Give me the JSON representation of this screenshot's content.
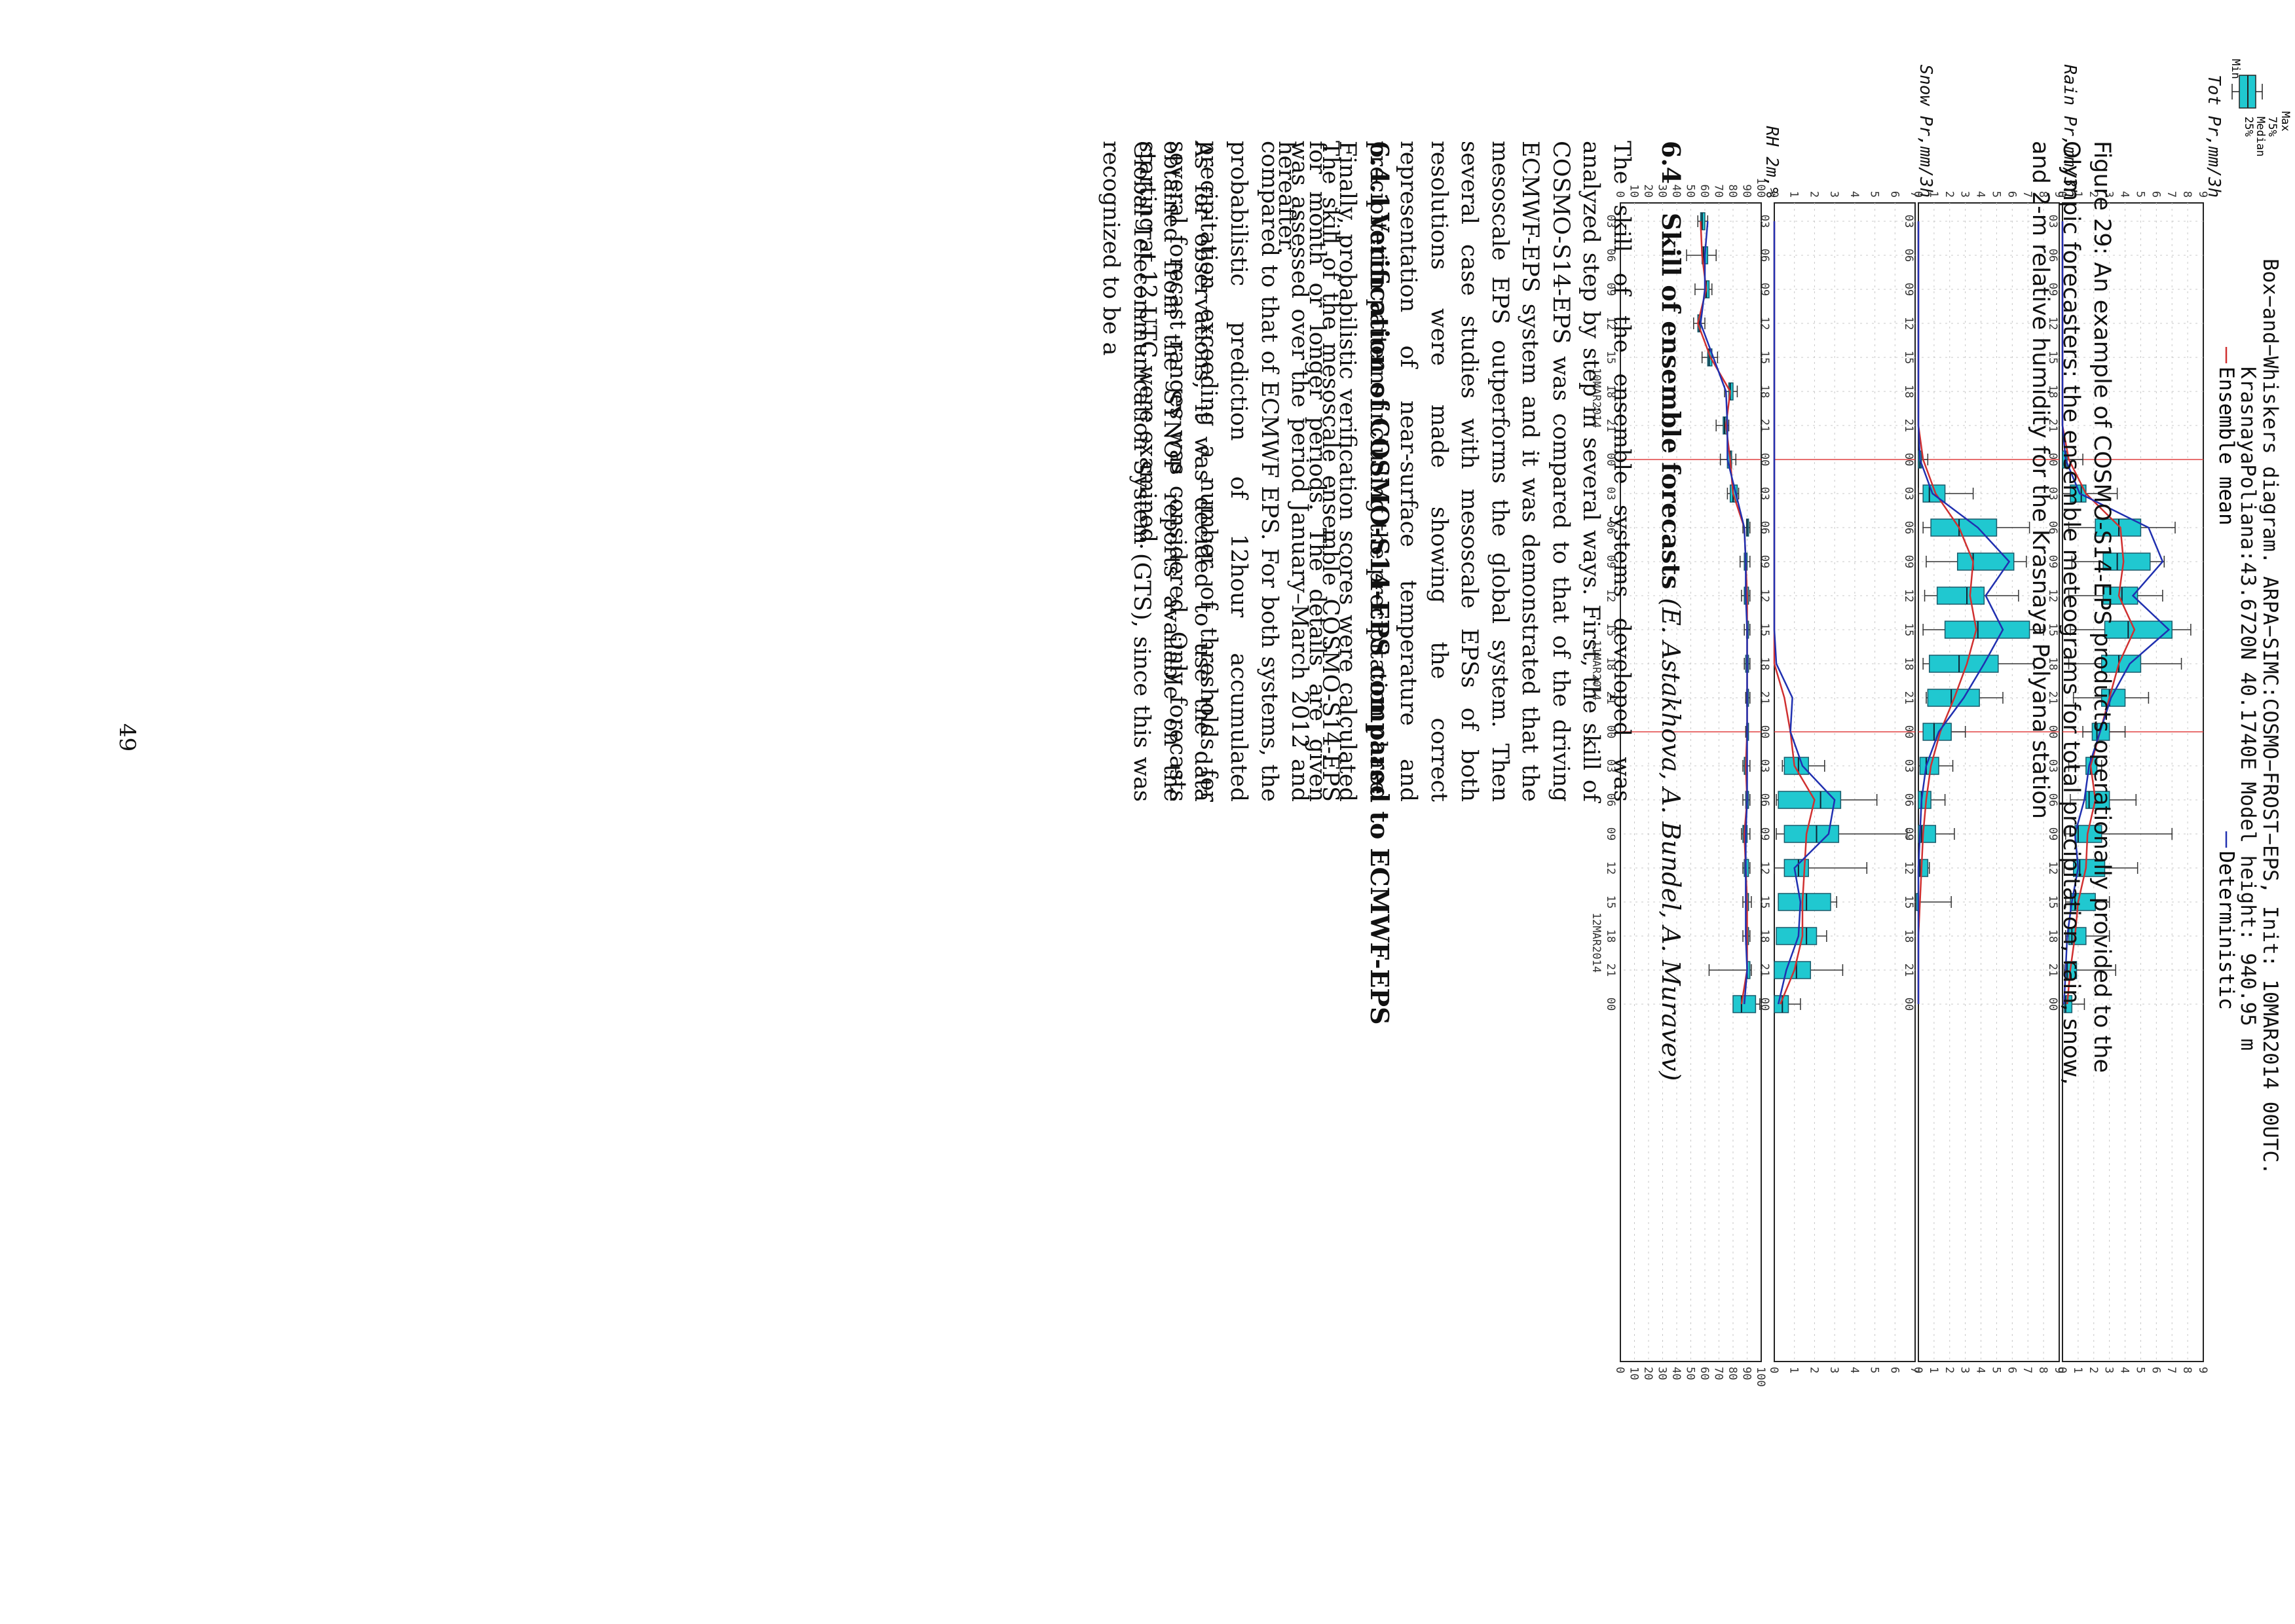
{
  "figure": {
    "title_line1": "Box−and−Whiskers diagram. ARPA−SIMC:COSMO−FROST−EPS, Init: 10MAR2014 00UTC.",
    "title_line2": "KrasnayaPoliana:43.6720N 40.1740E Model height: 940.95 m",
    "legend": {
      "max": "Max",
      "p75": "75%",
      "median": "Median",
      "p25": "25%",
      "min": "Min",
      "ensemble_mean": "Ensemble mean",
      "deterministic": "Deterministic"
    },
    "colors": {
      "box": "#20c8d0",
      "mean": "#d03030",
      "deterministic": "#2030b0",
      "grid": "#c8c8c8"
    },
    "x_tick_labels": [
      "03",
      "06",
      "09",
      "12",
      "15",
      "18",
      "21",
      "00",
      "03",
      "06",
      "09",
      "12",
      "15",
      "18",
      "21",
      "00",
      "03",
      "06",
      "09",
      "12",
      "15",
      "18",
      "21",
      "00"
    ],
    "date_labels": [
      "10MAR2014",
      "11MAR2014",
      "12MAR2014"
    ],
    "caption_label": "Figure 29:",
    "caption_text": "An example of COSMO-S14-EPS products operationally provided to the Olympic forecasters: the ensemble meteograms for total precipitation, rain, snow, and 2-m relative humidity for the Krasnaya Polyana station"
  },
  "chart_data": [
    {
      "type": "box",
      "title": "Tot Pr,mm/3h",
      "ylim": [
        0,
        9
      ],
      "y_ticks": [
        0,
        1,
        2,
        3,
        4,
        5,
        6,
        7,
        8,
        9
      ],
      "x": [
        "03",
        "06",
        "09",
        "12",
        "15",
        "18",
        "21",
        "00",
        "03",
        "06",
        "09",
        "12",
        "15",
        "18",
        "21",
        "00",
        "03",
        "06",
        "09",
        "12",
        "15",
        "18",
        "21",
        "00"
      ],
      "min": [
        0,
        0,
        0,
        0,
        0,
        0,
        0,
        0,
        0,
        0.4,
        0.6,
        0.4,
        0.5,
        0.4,
        0.7,
        1.3,
        0.4,
        0.5,
        0.2,
        0.1,
        0.2,
        0.2,
        0.1,
        0
      ],
      "q1": [
        0,
        0,
        0,
        0,
        0,
        0,
        0,
        0,
        0.5,
        2.1,
        2.6,
        2.6,
        2.7,
        2.5,
        2.5,
        1.9,
        1.5,
        1.5,
        0.8,
        0.7,
        0.5,
        0.4,
        0.2,
        0.1
      ],
      "median": [
        0,
        0,
        0,
        0,
        0,
        0,
        0,
        0.2,
        1.2,
        3.6,
        3.5,
        3.8,
        4.2,
        3.6,
        3.0,
        2.2,
        1.8,
        1.7,
        1.0,
        1.1,
        0.8,
        0.6,
        0.3,
        0.2
      ],
      "q3": [
        0,
        0,
        0,
        0,
        0,
        0,
        0,
        0.3,
        1.5,
        5.0,
        5.6,
        4.8,
        7.0,
        5.0,
        4.0,
        3.0,
        2.2,
        3.0,
        2.5,
        2.7,
        2.1,
        1.5,
        0.9,
        0.6
      ],
      "max": [
        0,
        0,
        0,
        0,
        0,
        0,
        0,
        1.3,
        3.5,
        7.2,
        6.5,
        6.4,
        8.2,
        7.6,
        5.5,
        4.0,
        2.5,
        4.7,
        7.0,
        4.8,
        3.0,
        3.0,
        3.4,
        1.4
      ],
      "ensemble_mean": [
        0,
        0,
        0,
        0,
        0,
        0,
        0,
        0.4,
        1.5,
        3.7,
        3.9,
        3.6,
        4.6,
        3.6,
        3.0,
        2.4,
        1.8,
        2.1,
        1.6,
        1.5,
        1.0,
        0.8,
        0.5,
        0.3
      ],
      "deterministic": [
        0,
        0,
        0,
        0,
        0,
        0,
        0,
        0.2,
        1.1,
        5.5,
        6.4,
        4.5,
        6.8,
        4.3,
        3.1,
        2.4,
        1.7,
        1.4,
        0.8,
        1.0,
        0.6,
        0.3,
        0.2,
        0.1
      ]
    },
    {
      "type": "box",
      "title": "Rain Pr,mm/3h",
      "ylim": [
        0,
        9
      ],
      "y_ticks": [
        0,
        1,
        2,
        3,
        4,
        5,
        6,
        7,
        8,
        9
      ],
      "x": [
        "03",
        "06",
        "09",
        "12",
        "15",
        "18",
        "21",
        "00",
        "03",
        "06",
        "09",
        "12",
        "15",
        "18",
        "21",
        "00",
        "03",
        "06",
        "09",
        "12",
        "15",
        "18",
        "21",
        "00"
      ],
      "min": [
        0,
        0,
        0,
        0,
        0,
        0,
        0,
        0,
        0,
        0.3,
        0.5,
        0.4,
        0.3,
        0.3,
        0.5,
        0.4,
        0,
        0,
        0,
        0,
        0,
        0,
        0,
        0
      ],
      "q1": [
        0,
        0,
        0,
        0,
        0,
        0,
        0,
        0,
        0.3,
        0.8,
        2.5,
        1.2,
        1.7,
        0.7,
        0.6,
        0.3,
        0.1,
        0,
        0,
        0,
        0,
        0,
        0,
        0
      ],
      "median": [
        0,
        0,
        0,
        0,
        0,
        0,
        0,
        0.1,
        0.7,
        2.6,
        3.5,
        3.1,
        3.8,
        2.6,
        2.1,
        1.0,
        0.5,
        0.2,
        0.2,
        0.1,
        0,
        0,
        0,
        0
      ],
      "q3": [
        0,
        0,
        0,
        0,
        0,
        0,
        0,
        0.2,
        1.7,
        5.0,
        6.1,
        4.2,
        7.1,
        5.1,
        3.9,
        2.1,
        1.3,
        0.8,
        1.1,
        0.6,
        0,
        0,
        0,
        0
      ],
      "max": [
        0,
        0,
        0,
        0,
        0,
        0,
        0,
        0.6,
        3.5,
        7.1,
        6.9,
        6.4,
        8.0,
        7.4,
        5.4,
        3.0,
        2.2,
        1.7,
        2.3,
        0.7,
        2.1,
        0,
        0,
        0
      ],
      "ensemble_mean": [
        0,
        0,
        0,
        0,
        0,
        0,
        0,
        0.3,
        1.1,
        2.6,
        3.5,
        3.3,
        3.7,
        3.1,
        2.3,
        1.4,
        0.8,
        0.5,
        0.3,
        0.2,
        0.1,
        0,
        0,
        0
      ],
      "deterministic": [
        0,
        0,
        0,
        0,
        0,
        0,
        0,
        0.1,
        0.9,
        3.8,
        5.8,
        4.3,
        5.4,
        4.2,
        2.9,
        1.3,
        0.5,
        0.2,
        0.1,
        0,
        0,
        0,
        0,
        0
      ]
    },
    {
      "type": "box",
      "title": "Snow Pr,mm/3h",
      "ylim": [
        0,
        7
      ],
      "y_ticks": [
        0,
        1,
        2,
        3,
        4,
        5,
        6,
        7
      ],
      "x": [
        "03",
        "06",
        "09",
        "12",
        "15",
        "18",
        "21",
        "00",
        "03",
        "06",
        "09",
        "12",
        "15",
        "18",
        "21",
        "00",
        "03",
        "06",
        "09",
        "12",
        "15",
        "18",
        "21",
        "00"
      ],
      "min": [
        0,
        0,
        0,
        0,
        0,
        0,
        0,
        0,
        0,
        0,
        0,
        0,
        0,
        0,
        0,
        0,
        0.4,
        0.1,
        0.1,
        0,
        0.2,
        0.3,
        0,
        0
      ],
      "q1": [
        0,
        0,
        0,
        0,
        0,
        0,
        0,
        0,
        0,
        0,
        0,
        0,
        0,
        0,
        0,
        0,
        0.5,
        0.2,
        0.5,
        0.5,
        0.2,
        0.1,
        0,
        0
      ],
      "median": [
        0,
        0,
        0,
        0,
        0,
        0,
        0,
        0,
        0,
        0,
        0,
        0,
        0,
        0,
        0,
        0,
        1.2,
        2.3,
        2.1,
        1.2,
        1.6,
        1.6,
        1.1,
        0.4
      ],
      "q3": [
        0,
        0,
        0,
        0,
        0,
        0,
        0,
        0,
        0,
        0,
        0,
        0,
        0,
        0,
        0,
        0,
        1.7,
        3.3,
        3.2,
        1.7,
        2.8,
        2.1,
        1.8,
        0.7
      ],
      "max": [
        0,
        0,
        0,
        0,
        0,
        0,
        0,
        0,
        0,
        0,
        0,
        0,
        0,
        0,
        0,
        0,
        2.5,
        5.1,
        6.6,
        4.6,
        3.1,
        2.6,
        3.4,
        1.3
      ],
      "ensemble_mean": [
        0,
        0,
        0,
        0,
        0,
        0,
        0,
        0,
        0,
        0,
        0,
        0,
        0,
        0,
        0.5,
        0.8,
        1.0,
        2.0,
        1.6,
        1.5,
        1.4,
        1.4,
        1.0,
        0.3
      ],
      "deterministic": [
        0,
        0,
        0,
        0,
        0,
        0,
        0,
        0,
        0,
        0,
        0,
        0,
        0,
        0.1,
        0.9,
        0.8,
        1.4,
        3.0,
        2.7,
        1.0,
        1.3,
        1.2,
        0.6,
        0.2
      ]
    },
    {
      "type": "box",
      "title": "RH 2m,%",
      "ylim": [
        0,
        100
      ],
      "y_ticks": [
        0,
        10,
        20,
        30,
        40,
        50,
        60,
        70,
        80,
        90,
        100
      ],
      "x": [
        "03",
        "06",
        "09",
        "12",
        "15",
        "18",
        "21",
        "00",
        "03",
        "06",
        "09",
        "12",
        "15",
        "18",
        "21",
        "00",
        "03",
        "06",
        "09",
        "12",
        "15",
        "18",
        "21",
        "00"
      ],
      "min": [
        55,
        47,
        53,
        52,
        58,
        74,
        68,
        71,
        76,
        87,
        85,
        86,
        88,
        88,
        89,
        89,
        87,
        87,
        86,
        87,
        87,
        87,
        63,
        84
      ],
      "q1": [
        57,
        58,
        60,
        55,
        62,
        77,
        73,
        76,
        78,
        90,
        88,
        88,
        90,
        89,
        90,
        90,
        88,
        89,
        87,
        88,
        89,
        89,
        90,
        80
      ],
      "median": [
        58,
        59,
        61,
        56,
        63,
        78,
        74,
        78,
        80,
        90,
        89,
        89,
        90,
        90,
        90,
        90,
        89,
        90,
        88,
        89,
        90,
        90,
        90,
        86
      ],
      "q3": [
        60,
        62,
        63,
        57,
        65,
        80,
        76,
        79,
        83,
        91,
        90,
        91,
        91,
        91,
        91,
        91,
        90,
        91,
        90,
        91,
        91,
        91,
        92,
        96
      ],
      "max": [
        62,
        68,
        65,
        60,
        69,
        83,
        77,
        82,
        84,
        92,
        92,
        92,
        92,
        92,
        92,
        91,
        92,
        92,
        92,
        92,
        93,
        92,
        93,
        99
      ],
      "ensemble_mean": [
        57,
        58,
        61,
        55,
        64,
        78,
        75,
        78,
        80,
        88,
        89,
        90,
        90,
        90,
        90,
        90,
        89,
        90,
        88,
        89,
        90,
        90,
        90,
        86
      ],
      "deterministic": [
        62,
        60,
        60,
        57,
        66,
        75,
        76,
        76,
        82,
        88,
        89,
        89,
        90,
        90,
        90,
        90,
        90,
        90,
        89,
        89,
        89,
        89,
        90,
        88
      ]
    }
  ],
  "sections": {
    "s64": {
      "number": "6.4",
      "title": "Skill of ensemble forecasts ",
      "authors": "(E. Astakhova, A. Bundel, A. Muravev)",
      "body": "The skill of the ensemble systems developed was analyzed step by step in several ways. First, the skill of COSMO-S14-EPS was compared to that of the driving ECMWF-EPS system and it was demonstrated that the mesoscale EPS outperforms the global system. Then several case studies with mesoscale EPSs of both resolutions were made showing the correct representation of near-surface temperature and precipitation patterns including the precipitation phase. Finally, probabilistic verification scores were calculated for month or longer periods. The details are given hereafter."
    },
    "s641": {
      "number": "6.4.1",
      "title": "Verification of COSMO-S14-EPS compared to ECMWF-EPS",
      "body1": "The skill of the mesoscale ensemble COSMO-S14-EPS was assessed over the period January–March 2012 and compared to that of ECMWF EPS. For both systems, the probabilistic prediction of 12hour accumulated precipitation exceeding a number of thresholds for several forecast ranges was considered. Only forecasts starting at 12 UTC were examined.",
      "body2": "As for observations, it was decided to use the data obtained from the SYNOP reports available on the Global Telecommunication System (GTS), since this was recognized to be a"
    }
  },
  "page_number": "49"
}
